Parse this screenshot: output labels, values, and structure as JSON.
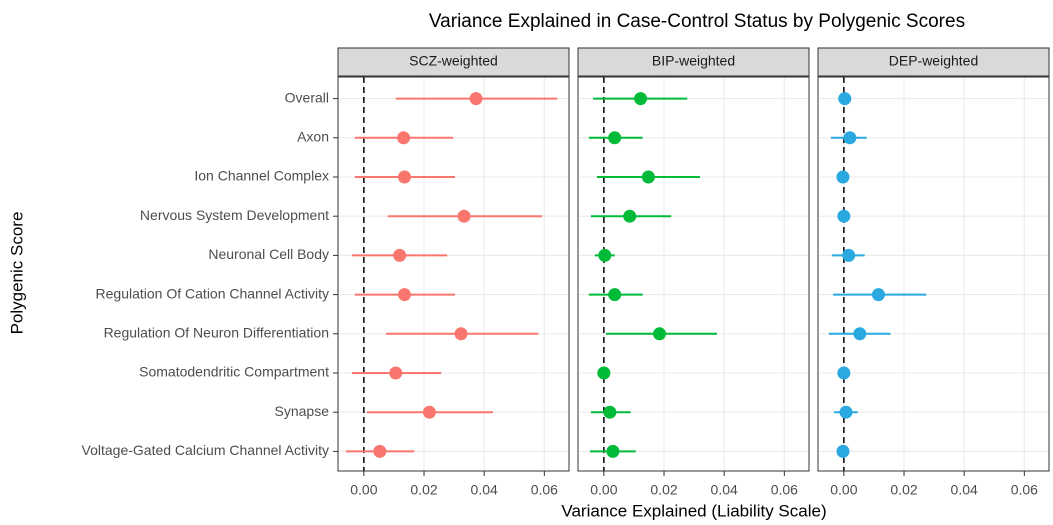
{
  "chart_data": {
    "type": "errorbar",
    "title": "Variance Explained in Case-Control Status by Polygenic Scores",
    "xlabel": "Variance Explained (Liability Scale)",
    "ylabel": "Polygenic Score",
    "categories": [
      "Overall",
      "Axon",
      "Ion Channel Complex",
      "Nervous System Development",
      "Neuronal Cell Body",
      "Regulation Of Cation Channel Activity",
      "Regulation Of Neuron Differentiation",
      "Somatodendritic Compartment",
      "Synapse",
      "Voltage-Gated Calcium Channel Activity"
    ],
    "xlim": [
      -0.0086,
      0.0682
    ],
    "xticks": [
      {
        "value": 0,
        "label": "0.00"
      },
      {
        "value": 0.02,
        "label": "0.02"
      },
      {
        "value": 0.04,
        "label": "0.04"
      },
      {
        "value": 0.06,
        "label": "0.06"
      }
    ],
    "grid": true,
    "series": [
      {
        "name": "SCZ-weighted",
        "color": "#F8766D",
        "values": [
          0.0373,
          0.0132,
          0.0135,
          0.0333,
          0.0119,
          0.0135,
          0.0323,
          0.0106,
          0.0218,
          0.0053
        ],
        "lower": [
          0.0106,
          -0.003,
          -0.003,
          0.0079,
          -0.004,
          -0.003,
          0.0073,
          -0.004,
          0.001,
          -0.006
        ],
        "upper": [
          0.0643,
          0.0297,
          0.0303,
          0.0593,
          0.0277,
          0.0303,
          0.058,
          0.0257,
          0.0429,
          0.0168
        ]
      },
      {
        "name": "BIP-weighted",
        "color": "#00BA38",
        "values": [
          0.0122,
          0.0036,
          0.0148,
          0.0086,
          0.0003,
          0.0036,
          0.0185,
          0,
          0.002,
          0.003
        ],
        "lower": [
          -0.0036,
          -0.005,
          -0.0023,
          -0.0043,
          -0.003,
          -0.005,
          0.0007,
          -0.0013,
          -0.0043,
          -0.0046
        ],
        "upper": [
          0.0277,
          0.0129,
          0.032,
          0.0224,
          0.0036,
          0.0129,
          0.0376,
          0.0013,
          0.0089,
          0.0106
        ]
      },
      {
        "name": "DEP-weighted",
        "color": "#29A9E0",
        "values": [
          0.0003,
          0.002,
          -0.0003,
          0,
          0.0016,
          0.0115,
          0.0053,
          0,
          0.0007,
          -0.0003
        ],
        "lower": [
          -0.001,
          -0.0043,
          -0.001,
          -0.0007,
          -0.004,
          -0.0036,
          -0.005,
          -0.001,
          -0.0033,
          -0.001
        ],
        "upper": [
          0.0023,
          0.0076,
          0.0007,
          0.001,
          0.0069,
          0.0274,
          0.0155,
          0.001,
          0.0046,
          0.0007
        ]
      }
    ]
  }
}
